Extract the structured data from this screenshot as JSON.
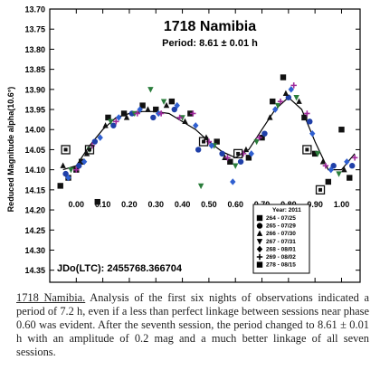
{
  "chart_data": {
    "type": "scatter",
    "title": "1718 Namibia",
    "subtitle": "Period: 8.61 ± 0.01 h",
    "ylabel": "Reduced Magnitude alpha(10.6°)",
    "xlabel": "",
    "xlim": [
      -0.1,
      1.07
    ],
    "ylim": [
      13.7,
      14.38
    ],
    "y_inverted": true,
    "grid": false,
    "x_ticks": [
      "0.00",
      "0.10",
      "0.20",
      "0.30",
      "0.40",
      "0.50",
      "0.60",
      "0.70",
      "0.80",
      "0.90",
      "1.00"
    ],
    "y_ticks": [
      "13.70",
      "13.75",
      "13.80",
      "13.85",
      "13.90",
      "13.95",
      "14.00",
      "14.05",
      "14.10",
      "14.15",
      "14.20",
      "14.25",
      "14.30",
      "14.35"
    ],
    "legend_title": "Year: 2011",
    "legend_placement": "bottom-right",
    "annotation": "JDo(LTC): 2455768.366704",
    "fit": [
      [
        -0.05,
        14.1
      ],
      [
        0.0,
        14.09
      ],
      [
        0.05,
        14.04
      ],
      [
        0.1,
        14.0
      ],
      [
        0.15,
        13.97
      ],
      [
        0.2,
        13.96
      ],
      [
        0.25,
        13.955
      ],
      [
        0.3,
        13.955
      ],
      [
        0.35,
        13.96
      ],
      [
        0.4,
        13.98
      ],
      [
        0.45,
        14.0
      ],
      [
        0.5,
        14.03
      ],
      [
        0.55,
        14.055
      ],
      [
        0.6,
        14.07
      ],
      [
        0.65,
        14.05
      ],
      [
        0.7,
        14.0
      ],
      [
        0.75,
        13.95
      ],
      [
        0.8,
        13.92
      ],
      [
        0.85,
        13.95
      ],
      [
        0.9,
        14.03
      ],
      [
        0.95,
        14.1
      ],
      [
        1.0,
        14.1
      ],
      [
        1.05,
        14.06
      ]
    ],
    "series": [
      {
        "name": "264 - 07/25",
        "marker": "square",
        "color": "#111111",
        "x": [
          -0.06,
          -0.03,
          0.0,
          0.02,
          0.08,
          0.12,
          0.18,
          0.25,
          0.3,
          0.36,
          0.43,
          0.53,
          0.58,
          0.65,
          0.7,
          0.74,
          0.78,
          0.86,
          0.9,
          0.95,
          1.0,
          1.03
        ],
        "y": [
          14.14,
          14.12,
          14.1,
          14.08,
          14.18,
          13.97,
          13.96,
          13.94,
          13.95,
          13.93,
          13.96,
          14.03,
          14.08,
          14.07,
          14.02,
          13.93,
          13.87,
          13.97,
          14.06,
          14.13,
          14.0,
          14.12
        ]
      },
      {
        "name": "265 - 07/29",
        "marker": "circle",
        "color": "#1f3fa8",
        "x": [
          -0.04,
          0.01,
          0.07,
          0.14,
          0.21,
          0.29,
          0.37,
          0.46,
          0.55,
          0.62,
          0.71,
          0.8,
          0.88,
          0.97,
          1.04
        ],
        "y": [
          14.11,
          14.09,
          14.03,
          13.99,
          13.96,
          13.97,
          13.95,
          14.05,
          14.06,
          14.08,
          14.01,
          13.92,
          13.98,
          14.09,
          14.09
        ]
      },
      {
        "name": "266 - 07/30",
        "marker": "triangle",
        "color": "#111111",
        "x": [
          -0.05,
          0.04,
          0.11,
          0.19,
          0.27,
          0.34,
          0.41,
          0.49,
          0.56,
          0.64,
          0.73,
          0.79,
          0.84,
          0.93,
          1.01
        ],
        "y": [
          14.09,
          14.06,
          13.99,
          13.97,
          13.95,
          13.94,
          13.98,
          14.02,
          14.07,
          14.05,
          13.97,
          13.91,
          13.93,
          14.08,
          14.1
        ]
      },
      {
        "name": "267 - 07/31",
        "marker": "triangle-down",
        "color": "#2a7d3b",
        "x": [
          -0.02,
          0.05,
          0.13,
          0.22,
          0.28,
          0.33,
          0.4,
          0.47,
          0.52,
          0.6,
          0.68,
          0.76,
          0.83,
          0.91,
          0.99
        ],
        "y": [
          14.1,
          14.05,
          13.98,
          13.96,
          13.9,
          13.93,
          13.97,
          14.14,
          14.04,
          14.09,
          14.03,
          13.94,
          13.92,
          14.06,
          14.11
        ]
      },
      {
        "name": "268 - 08/01",
        "marker": "diamond",
        "color": "#2f5fd0",
        "x": [
          -0.03,
          0.03,
          0.09,
          0.16,
          0.24,
          0.31,
          0.38,
          0.45,
          0.51,
          0.59,
          0.66,
          0.75,
          0.81,
          0.89,
          0.96,
          1.02
        ],
        "y": [
          14.12,
          14.08,
          14.02,
          13.97,
          13.95,
          13.96,
          13.94,
          13.99,
          14.04,
          14.13,
          14.06,
          13.95,
          13.9,
          14.01,
          14.1,
          14.08
        ]
      },
      {
        "name": "269 - 08/02",
        "marker": "plus",
        "color": "#a02a9c",
        "x": [
          0.0,
          0.06,
          0.15,
          0.23,
          0.32,
          0.39,
          0.44,
          0.5,
          0.57,
          0.63,
          0.69,
          0.77,
          0.82,
          0.87,
          0.94,
          1.05
        ],
        "y": [
          14.1,
          14.04,
          13.98,
          13.96,
          13.96,
          13.97,
          13.96,
          14.03,
          14.07,
          14.06,
          14.02,
          13.93,
          13.89,
          13.96,
          14.09,
          14.07
        ]
      },
      {
        "name": "278 - 08/15",
        "marker": "square-open",
        "color": "#111111",
        "x": [
          -0.04,
          0.05,
          0.48,
          0.61,
          0.87,
          0.92
        ],
        "y": [
          14.05,
          14.05,
          14.03,
          14.06,
          14.05,
          14.15
        ]
      }
    ]
  },
  "caption": {
    "lead": "1718 Namibia.",
    "text": " Analysis of the first six nights of observations indicated a period of 7.2 h, even if a less than perfect linkage between sessions near phase 0.60 was evident. After the seventh session, the period changed to 8.61 ± 0.01 h with an amplitude of 0.2 mag and a much better linkage of all seven sessions."
  }
}
